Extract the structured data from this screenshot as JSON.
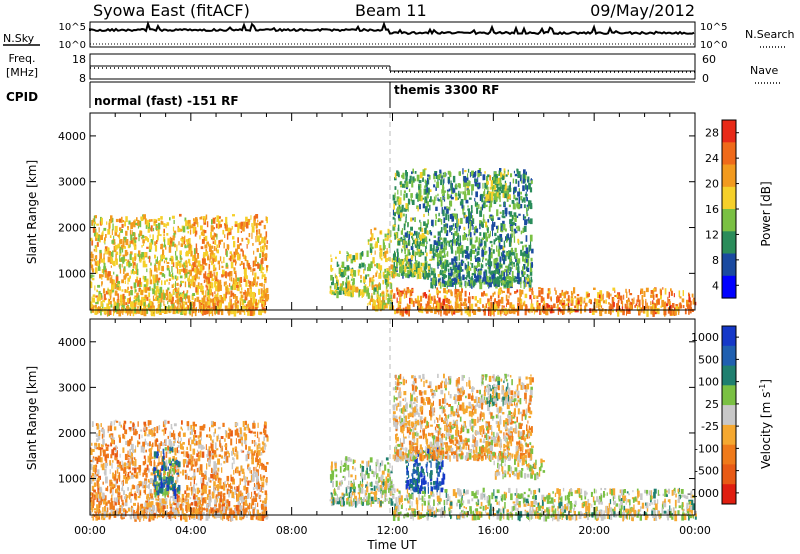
{
  "header": {
    "station": "Syowa East (fitACF)",
    "beam": "Beam 11",
    "date": "09/May/2012"
  },
  "strips": {
    "nsky": {
      "left_label": "N.Sky",
      "right_label": "N.Search",
      "left_ticks": [
        "10^5",
        "10^0"
      ],
      "right_ticks": [
        "10^5",
        "10^0"
      ]
    },
    "freq": {
      "left_label_line1": "Freq.",
      "left_label_line2": "[MHz]",
      "right_label": "Nave",
      "left_ticks": [
        "18",
        "8"
      ],
      "right_ticks": [
        "60",
        "0"
      ]
    },
    "cpid": {
      "label": "CPID",
      "programs": [
        {
          "name": "normal (fast) -151 RF",
          "start_hour": 0
        },
        {
          "name": "themis 3300 RF",
          "start_hour": 12
        }
      ]
    }
  },
  "colors": {
    "power_scale": [
      "#0000ff",
      "#1a4aa0",
      "#2a8c5a",
      "#7ac043",
      "#f5d02a",
      "#f29a1e",
      "#ef6a1a",
      "#e82a18"
    ],
    "velocity_scale": [
      "#1538c8",
      "#1f5fb0",
      "#1f7f6f",
      "#7ac043",
      "#c8c8c8",
      "#f5a830",
      "#ef7a1a",
      "#e85a15",
      "#e01e10"
    ]
  },
  "chart_data": [
    {
      "type": "heatmap",
      "title": "",
      "xlabel": "",
      "ylabel": "Slant Range [km]",
      "xlim": [
        0,
        24
      ],
      "ylim": [
        200,
        4500
      ],
      "x_ticks": [
        "00:00",
        "04:00",
        "08:00",
        "12:00",
        "16:00",
        "20:00",
        "00:00"
      ],
      "y_ticks": [
        1000,
        2000,
        3000,
        4000
      ],
      "colorbar": {
        "label": "Power [dB]",
        "ticks": [
          "28",
          "24",
          "20",
          "16",
          "12",
          "8",
          "4"
        ],
        "range": [
          0,
          30
        ]
      },
      "echo_regions": [
        {
          "hours": [
            0,
            4
          ],
          "range_km": [
            200,
            2300
          ],
          "value": 18
        },
        {
          "hours": [
            4,
            7
          ],
          "range_km": [
            200,
            2300
          ],
          "value": 20
        },
        {
          "hours": [
            9.5,
            11
          ],
          "range_km": [
            600,
            1500
          ],
          "value": 14
        },
        {
          "hours": [
            11,
            12
          ],
          "range_km": [
            300,
            2000
          ],
          "value": 16
        },
        {
          "hours": [
            12,
            13.5
          ],
          "range_km": [
            1000,
            3300
          ],
          "value": 12
        },
        {
          "hours": [
            13.5,
            17.5
          ],
          "range_km": [
            800,
            3300
          ],
          "value": 10
        },
        {
          "hours": [
            15.5,
            16.6
          ],
          "range_km": [
            2700,
            3300
          ],
          "value": 14
        },
        {
          "hours": [
            12,
            24
          ],
          "range_km": [
            200,
            700
          ],
          "value": 22
        }
      ]
    },
    {
      "type": "heatmap",
      "title": "",
      "xlabel": "Time UT",
      "ylabel": "Slant Range [km]",
      "xlim": [
        0,
        24
      ],
      "ylim": [
        200,
        4500
      ],
      "x_ticks": [
        "00:00",
        "04:00",
        "08:00",
        "12:00",
        "16:00",
        "20:00",
        "00:00"
      ],
      "y_ticks": [
        1000,
        2000,
        3000,
        4000
      ],
      "colorbar": {
        "label": "Velocity [m s^-1]",
        "ticks": [
          "1000",
          "500",
          "100",
          "25",
          "-25",
          "-100",
          "-500",
          "-1000"
        ],
        "range": [
          -1000,
          1000
        ]
      },
      "echo_regions": [
        {
          "hours": [
            0,
            4
          ],
          "range_km": [
            200,
            2300
          ],
          "value": -300
        },
        {
          "hours": [
            2.5,
            3.5
          ],
          "range_km": [
            700,
            1700
          ],
          "value": 500
        },
        {
          "hours": [
            4,
            7
          ],
          "range_km": [
            200,
            2300
          ],
          "value": -250
        },
        {
          "hours": [
            9.5,
            12
          ],
          "range_km": [
            500,
            1500
          ],
          "value": 100
        },
        {
          "hours": [
            12.5,
            14
          ],
          "range_km": [
            800,
            1700
          ],
          "value": 700
        },
        {
          "hours": [
            12,
            17.5
          ],
          "range_km": [
            1500,
            3300
          ],
          "value": -150
        },
        {
          "hours": [
            15.5,
            16.6
          ],
          "range_km": [
            2700,
            3300
          ],
          "value": 150
        },
        {
          "hours": [
            16,
            18
          ],
          "range_km": [
            1100,
            1500
          ],
          "value": 20
        },
        {
          "hours": [
            12,
            24
          ],
          "range_km": [
            200,
            800
          ],
          "value": 60
        }
      ]
    }
  ]
}
